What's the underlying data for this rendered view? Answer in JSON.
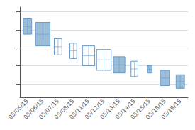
{
  "chart_data": {
    "type": "equivolume",
    "categories": [
      "05/05/15",
      "05/06/15",
      "05/07/15",
      "05/08/15",
      "05/11/15",
      "05/12/15",
      "05/13/15",
      "05/14/15",
      "05/15/15",
      "05/18/15",
      "05/19/15"
    ],
    "open": [
      10.2,
      9.8,
      8.0,
      7.5,
      7.2,
      6.8,
      6.0,
      5.5,
      5.0,
      4.5,
      4.0
    ],
    "close": [
      8.5,
      7.2,
      6.2,
      5.8,
      5.0,
      4.5,
      4.2,
      3.8,
      4.2,
      2.8,
      2.5
    ],
    "volume": [
      2.2,
      3.8,
      2.0,
      1.8,
      3.2,
      3.8,
      3.0,
      1.8,
      1.2,
      2.5,
      2.2
    ],
    "color": "#6699cc",
    "colors": [
      "#9bbdd6",
      "#9bbdd6",
      "#ffffff",
      "#ffffff",
      "#ffffff",
      "#ffffff",
      "#9bbdd6",
      "#ffffff",
      "#9bbdd6",
      "#9bbdd6",
      "#9bbdd6"
    ],
    "ylim": [
      1.5,
      11.5
    ],
    "yticks": [
      3,
      5,
      7,
      9,
      11
    ],
    "grid": true,
    "tick_labels": "x"
  }
}
